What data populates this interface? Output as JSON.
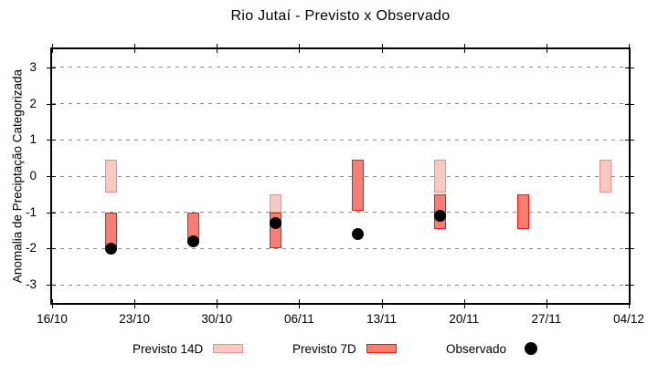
{
  "chart_data": {
    "type": "range-bar+scatter",
    "title": "Rio Jutaí - Previsto x Observado",
    "ylabel": "Anomalia de Preciptação Categorizada",
    "xlabel": "",
    "ylim": [
      -3.5,
      3.5
    ],
    "yticks": [
      3,
      2,
      1,
      0,
      -1,
      -2,
      -3
    ],
    "grid": "horizontal-dashed",
    "legend_position": "bottom",
    "x_axis": {
      "span_days": 49,
      "ticks": [
        {
          "day": 0,
          "label": "16/10"
        },
        {
          "day": 7,
          "label": "23/10"
        },
        {
          "day": 14,
          "label": "30/10"
        },
        {
          "day": 21,
          "label": "06/11"
        },
        {
          "day": 28,
          "label": "13/11"
        },
        {
          "day": 35,
          "label": "20/11"
        },
        {
          "day": 42,
          "label": "27/11"
        },
        {
          "day": 49,
          "label": "04/12"
        }
      ]
    },
    "series": [
      {
        "name": "Previsto 14D",
        "style": "range-bar",
        "fill": "#f8c9c2",
        "border": "#ee9182",
        "points": [
          {
            "date": "21/10",
            "day": 5,
            "high": 0.45,
            "low": -0.45
          },
          {
            "date": "04/11",
            "day": 19,
            "high": -0.5,
            "low": -1.0
          },
          {
            "date": "18/11",
            "day": 33,
            "high": 0.45,
            "low": -0.45
          },
          {
            "date": "02/12",
            "day": 47,
            "high": 0.45,
            "low": -0.45
          }
        ]
      },
      {
        "name": "Previsto 7D",
        "style": "range-bar",
        "fill": "#f87d74",
        "border": "#fe1410",
        "points": [
          {
            "date": "21/10",
            "day": 5,
            "high": -1.0,
            "low": -2.05
          },
          {
            "date": "28/10",
            "day": 12,
            "high": -1.0,
            "low": -1.85
          },
          {
            "date": "04/11",
            "day": 19,
            "high": -1.0,
            "low": -2.0
          },
          {
            "date": "11/11",
            "day": 26,
            "high": 0.45,
            "low": -0.95
          },
          {
            "date": "18/11",
            "day": 33,
            "high": -0.5,
            "low": -1.45
          },
          {
            "date": "25/11",
            "day": 40,
            "high": -0.5,
            "low": -1.45
          }
        ]
      },
      {
        "name": "Observado",
        "style": "scatter-dot",
        "color": "#000000",
        "points": [
          {
            "date": "21/10",
            "day": 5,
            "value": -2.0
          },
          {
            "date": "28/10",
            "day": 12,
            "value": -1.8
          },
          {
            "date": "04/11",
            "day": 19,
            "value": -1.3
          },
          {
            "date": "11/11",
            "day": 26,
            "value": -1.6
          },
          {
            "date": "18/11",
            "day": 33,
            "value": -1.1
          }
        ]
      }
    ]
  },
  "legend": {
    "items": [
      {
        "label": "Previsto 14D"
      },
      {
        "label": "Previsto 7D"
      },
      {
        "label": "Observado"
      }
    ]
  },
  "colors": {
    "grid": "#8c8c8c",
    "axis": "#000000",
    "background": "#ffffff",
    "text": "#000000"
  }
}
